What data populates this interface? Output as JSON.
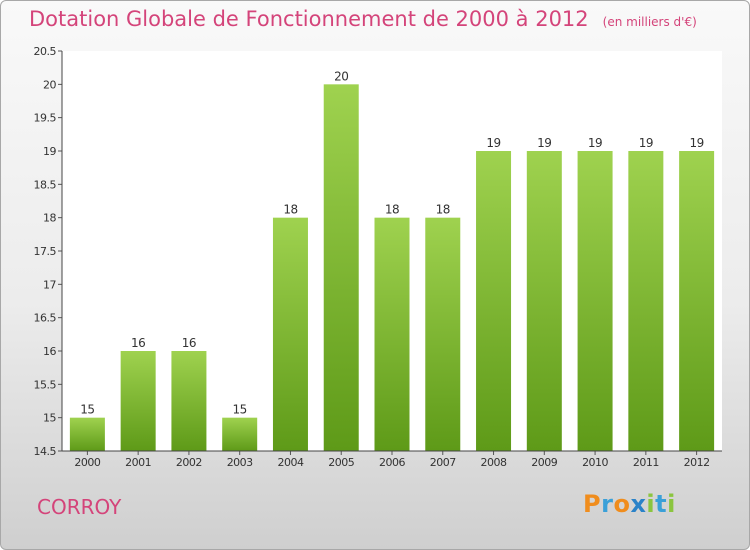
{
  "header": {
    "title": "Dotation Globale de Fonctionnement de 2000 à 2012",
    "unit": "(en milliers d'€)"
  },
  "footer": {
    "commune": "CORROY",
    "logo_letters": [
      "P",
      "r",
      "o",
      "x",
      "i",
      "t",
      "i"
    ]
  },
  "colors": {
    "title": "#d4447a",
    "bar_top": "#9fd24f",
    "bar_bottom": "#5e9a18",
    "logo": [
      "#f08d1d",
      "#3aa0d8",
      "#f08d1d",
      "#2a82c8",
      "#8bc53f",
      "#3aa0d8",
      "#8bc53f"
    ]
  },
  "chart_data": {
    "type": "bar",
    "categories": [
      "2000",
      "2001",
      "2002",
      "2003",
      "2004",
      "2005",
      "2006",
      "2007",
      "2008",
      "2009",
      "2010",
      "2011",
      "2012"
    ],
    "values": [
      15,
      16,
      16,
      15,
      18,
      20,
      18,
      18,
      19,
      19,
      19,
      19,
      19
    ],
    "labels": [
      "15",
      "16",
      "16",
      "15",
      "18",
      "20",
      "18",
      "18",
      "19",
      "19",
      "19",
      "19",
      "19"
    ],
    "yticks": [
      "14.5",
      "15",
      "15.5",
      "16",
      "16.5",
      "17",
      "17.5",
      "18",
      "18.5",
      "19",
      "19.5",
      "20",
      "20.5"
    ],
    "ylim": [
      14.5,
      20.5
    ],
    "grid": false
  }
}
